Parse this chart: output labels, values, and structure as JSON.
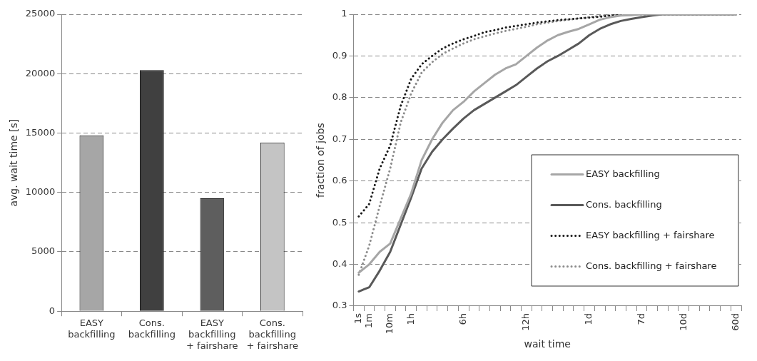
{
  "chart_data": [
    {
      "type": "bar",
      "ylabel": "avg. wait time [s]",
      "categories": [
        "EASY backfilling",
        "Cons. backfilling",
        "EASY backfilling + fairshare",
        "Cons. backfilling + fairshare"
      ],
      "values": [
        14800,
        20300,
        9500,
        14200
      ],
      "colors": [
        "#a6a6a6",
        "#404040",
        "#5e5e5e",
        "#c4c4c4"
      ],
      "ylim": [
        0,
        25000
      ],
      "yticks": [
        0,
        5000,
        10000,
        15000,
        20000,
        25000
      ],
      "grid": "y"
    },
    {
      "type": "line",
      "xlabel": "wait time",
      "ylabel": "fraction of jobs",
      "categories": [
        "1s",
        "1m",
        null,
        "10m",
        null,
        "1h",
        null,
        null,
        null,
        null,
        "6h",
        null,
        null,
        null,
        null,
        null,
        "12h",
        null,
        null,
        null,
        null,
        null,
        "1d",
        null,
        null,
        null,
        null,
        "7d",
        null,
        null,
        null,
        "10d",
        null,
        null,
        null,
        null,
        "60d"
      ],
      "ylim": [
        0.3,
        1
      ],
      "yticks": [
        0.3,
        0.4,
        0.5,
        0.6,
        0.7,
        0.8,
        0.9,
        1
      ],
      "grid": "y",
      "legend": "bottom right",
      "series": [
        {
          "name": "EASY backfilling",
          "color": "#a6a6a6",
          "line_style": "solid",
          "values": [
            0.38,
            0.4,
            0.43,
            0.45,
            0.51,
            0.57,
            0.65,
            0.7,
            0.74,
            0.77,
            0.79,
            0.815,
            0.835,
            0.855,
            0.87,
            0.88,
            0.9,
            0.92,
            0.937,
            0.95,
            0.958,
            0.965,
            0.976,
            0.987,
            0.993,
            0.997,
            0.998,
            1,
            1,
            1,
            1,
            1,
            1,
            1,
            1,
            1,
            1
          ]
        },
        {
          "name": "Cons. backfilling",
          "color": "#595959",
          "line_style": "solid",
          "values": [
            0.335,
            0.345,
            0.385,
            0.43,
            0.495,
            0.56,
            0.63,
            0.67,
            0.7,
            0.726,
            0.75,
            0.77,
            0.785,
            0.8,
            0.815,
            0.83,
            0.85,
            0.87,
            0.887,
            0.9,
            0.915,
            0.93,
            0.95,
            0.965,
            0.976,
            0.984,
            0.989,
            0.993,
            0.997,
            1,
            1,
            1,
            1,
            1,
            1,
            1,
            1
          ]
        },
        {
          "name": "EASY backfilling + fairshare",
          "color": "#1a1a1a",
          "line_style": "dotted",
          "values": [
            0.515,
            0.545,
            0.63,
            0.685,
            0.78,
            0.845,
            0.88,
            0.9,
            0.918,
            0.93,
            0.94,
            0.948,
            0.957,
            0.962,
            0.968,
            0.972,
            0.976,
            0.98,
            0.983,
            0.986,
            0.988,
            0.99,
            0.992,
            0.994,
            0.997,
            0.998,
            1,
            1,
            1,
            1,
            1,
            1,
            1,
            1,
            1,
            1,
            1
          ]
        },
        {
          "name": "Cons. backfilling + fairshare",
          "color": "#8c8c8c",
          "line_style": "dotted",
          "values": [
            0.375,
            0.445,
            0.54,
            0.63,
            0.74,
            0.81,
            0.86,
            0.885,
            0.905,
            0.918,
            0.93,
            0.94,
            0.947,
            0.954,
            0.96,
            0.965,
            0.97,
            0.976,
            0.98,
            0.984,
            0.987,
            0.99,
            0.993,
            0.996,
            0.998,
            1,
            1,
            1,
            1,
            1,
            1,
            1,
            1,
            1,
            1,
            1,
            1
          ]
        }
      ]
    }
  ]
}
